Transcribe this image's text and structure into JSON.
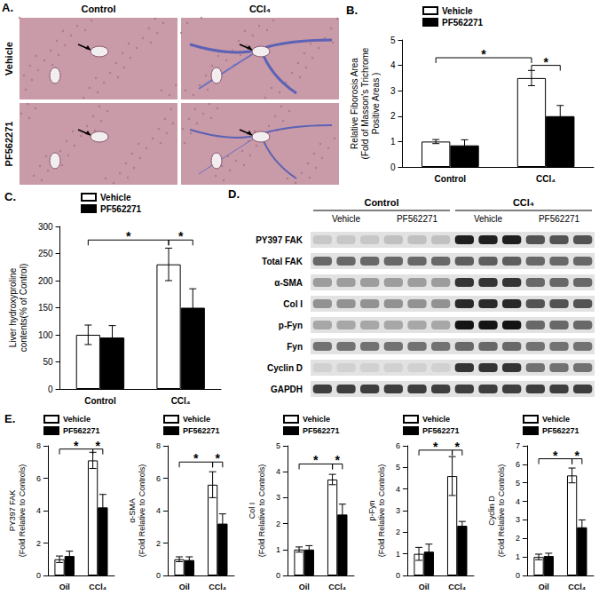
{
  "panel_a": {
    "title": "A.",
    "columns": [
      "Control",
      "CCl₄"
    ],
    "rows": [
      "Vehicle",
      "PF562271"
    ]
  },
  "panel_d": {
    "title": "D.",
    "groups": [
      {
        "label": "Control",
        "subgroups": [
          "Vehicle",
          "PF562271"
        ]
      },
      {
        "label": "CCl₄",
        "subgroups": [
          "Vehicle",
          "PF562271"
        ]
      }
    ],
    "lanes_per_subgroup": 3,
    "rows": [
      {
        "label": "PY397 FAK",
        "intensity": [
          0.15,
          0.18,
          0.95,
          0.7
        ]
      },
      {
        "label": "Total FAK",
        "intensity": [
          0.6,
          0.6,
          0.65,
          0.6
        ]
      },
      {
        "label": "α-SMA",
        "intensity": [
          0.35,
          0.35,
          0.85,
          0.6
        ]
      },
      {
        "label": "Col I",
        "intensity": [
          0.4,
          0.4,
          0.9,
          0.7
        ]
      },
      {
        "label": "p-Fyn",
        "intensity": [
          0.3,
          0.3,
          1.0,
          0.6
        ]
      },
      {
        "label": "Fyn",
        "intensity": [
          0.55,
          0.55,
          0.6,
          0.55
        ]
      },
      {
        "label": "Cyclin D",
        "intensity": [
          0.1,
          0.1,
          0.85,
          0.55
        ]
      },
      {
        "label": "GAPDH",
        "intensity": [
          0.8,
          0.8,
          0.8,
          0.8
        ]
      }
    ]
  },
  "chart_data": [
    {
      "type": "bar",
      "title": "B.",
      "y_label": "Relative Fiborosis Area\n(Fold of Masson's Trichrome\nPositive Areas )",
      "categories": [
        "Control",
        "CCl₄"
      ],
      "series": [
        {
          "name": "Vehicle",
          "color": "#ffffff",
          "values": [
            1.0,
            3.5
          ],
          "errors": [
            0.08,
            0.3
          ]
        },
        {
          "name": "PF562271",
          "color": "#000000",
          "values": [
            0.85,
            2.0
          ],
          "errors": [
            0.22,
            0.42
          ]
        }
      ],
      "ylim": [
        0,
        5
      ],
      "yticks": [
        0,
        1,
        2,
        3,
        4,
        5
      ],
      "grid": false,
      "legend": "top",
      "significance": [
        {
          "from": {
            "category": 0,
            "series": 0
          },
          "to": {
            "category": 1,
            "series": 0
          },
          "y": 4.3,
          "label": "*"
        },
        {
          "from": {
            "category": 1,
            "series": 0
          },
          "to": {
            "category": 1,
            "series": 1
          },
          "y": 4.0,
          "label": "*"
        }
      ]
    },
    {
      "type": "bar",
      "title": "C.",
      "y_label": "Liver hydroxyproline\ncontents(% of Control)",
      "categories": [
        "Control",
        "CCl₄"
      ],
      "series": [
        {
          "name": "Vehicle",
          "color": "#ffffff",
          "values": [
            100,
            230
          ],
          "errors": [
            18,
            30
          ]
        },
        {
          "name": "PF562271",
          "color": "#000000",
          "values": [
            95,
            150
          ],
          "errors": [
            22,
            35
          ]
        }
      ],
      "ylim": [
        0,
        300
      ],
      "yticks": [
        0,
        50,
        100,
        150,
        200,
        250,
        300
      ],
      "grid": false,
      "legend": "top",
      "significance": [
        {
          "from": {
            "category": 0,
            "series": 0
          },
          "to": {
            "category": 1,
            "series": 0
          },
          "y": 275,
          "label": "*"
        },
        {
          "from": {
            "category": 1,
            "series": 0
          },
          "to": {
            "category": 1,
            "series": 1
          },
          "y": 275,
          "label": "*"
        }
      ]
    },
    {
      "type": "bar",
      "title": "E.",
      "y_label": "PY397 FAK\n(Fold Relative to Controls)",
      "categories": [
        "Oil",
        "CCl₄"
      ],
      "series": [
        {
          "name": "Vehicle",
          "color": "#ffffff",
          "values": [
            1.0,
            7.1
          ],
          "errors": [
            0.2,
            0.5
          ]
        },
        {
          "name": "PF562271",
          "color": "#000000",
          "values": [
            1.2,
            4.2
          ],
          "errors": [
            0.3,
            0.8
          ]
        }
      ],
      "ylim": [
        0,
        8
      ],
      "yticks": [
        0,
        2,
        4,
        6,
        8
      ],
      "grid": false,
      "legend": "top",
      "significance": [
        {
          "from": {
            "category": 0,
            "series": 0
          },
          "to": {
            "category": 1,
            "series": 0
          },
          "y": 7.8,
          "label": "*"
        },
        {
          "from": {
            "category": 1,
            "series": 0
          },
          "to": {
            "category": 1,
            "series": 1
          },
          "y": 7.8,
          "label": "*"
        }
      ]
    },
    {
      "type": "bar",
      "y_label": "α-SMA\n(Fold Relative to Controls)",
      "categories": [
        "Oil",
        "CCl₄"
      ],
      "series": [
        {
          "name": "Vehicle",
          "color": "#ffffff",
          "values": [
            1.0,
            5.6
          ],
          "errors": [
            0.15,
            0.8
          ]
        },
        {
          "name": "PF562271",
          "color": "#000000",
          "values": [
            0.95,
            3.2
          ],
          "errors": [
            0.2,
            0.6
          ]
        }
      ],
      "ylim": [
        0,
        8
      ],
      "yticks": [
        0,
        2,
        4,
        6,
        8
      ],
      "grid": false,
      "legend": "top",
      "significance": [
        {
          "from": {
            "category": 0,
            "series": 0
          },
          "to": {
            "category": 1,
            "series": 0
          },
          "y": 7.0,
          "label": "*"
        },
        {
          "from": {
            "category": 1,
            "series": 0
          },
          "to": {
            "category": 1,
            "series": 1
          },
          "y": 7.0,
          "label": "*"
        }
      ]
    },
    {
      "type": "bar",
      "y_label": "Col I\n(Fold Relative to Controls)",
      "categories": [
        "Oil",
        "CCl₄"
      ],
      "series": [
        {
          "name": "Vehicle",
          "color": "#ffffff",
          "values": [
            1.0,
            3.7
          ],
          "errors": [
            0.1,
            0.2
          ]
        },
        {
          "name": "PF562271",
          "color": "#000000",
          "values": [
            1.0,
            2.35
          ],
          "errors": [
            0.15,
            0.4
          ]
        }
      ],
      "ylim": [
        0,
        5
      ],
      "yticks": [
        0,
        1,
        2,
        3,
        4,
        5
      ],
      "grid": false,
      "legend": "top",
      "significance": [
        {
          "from": {
            "category": 0,
            "series": 0
          },
          "to": {
            "category": 1,
            "series": 0
          },
          "y": 4.3,
          "label": "*"
        },
        {
          "from": {
            "category": 1,
            "series": 0
          },
          "to": {
            "category": 1,
            "series": 1
          },
          "y": 4.3,
          "label": "*"
        }
      ]
    },
    {
      "type": "bar",
      "y_label": "p-Fyn\n(Fold Relative to Controls)",
      "categories": [
        "Oil",
        "CCl₄"
      ],
      "series": [
        {
          "name": "Vehicle",
          "color": "#ffffff",
          "values": [
            1.0,
            4.6
          ],
          "errors": [
            0.3,
            0.9
          ]
        },
        {
          "name": "PF562271",
          "color": "#000000",
          "values": [
            1.1,
            2.3
          ],
          "errors": [
            0.35,
            0.2
          ]
        }
      ],
      "ylim": [
        0,
        6
      ],
      "yticks": [
        0,
        1,
        2,
        3,
        4,
        5,
        6
      ],
      "grid": false,
      "legend": "top",
      "significance": [
        {
          "from": {
            "category": 0,
            "series": 0
          },
          "to": {
            "category": 1,
            "series": 0
          },
          "y": 5.8,
          "label": "*"
        },
        {
          "from": {
            "category": 1,
            "series": 0
          },
          "to": {
            "category": 1,
            "series": 1
          },
          "y": 5.8,
          "label": "*"
        }
      ]
    },
    {
      "type": "bar",
      "y_label": "Cyclin D\n(Fold Relative to Controls)",
      "categories": [
        "Oil",
        "CCl₄"
      ],
      "series": [
        {
          "name": "Vehicle",
          "color": "#ffffff",
          "values": [
            1.0,
            5.4
          ],
          "errors": [
            0.15,
            0.4
          ]
        },
        {
          "name": "PF562271",
          "color": "#000000",
          "values": [
            1.05,
            2.6
          ],
          "errors": [
            0.15,
            0.4
          ]
        }
      ],
      "ylim": [
        0,
        7
      ],
      "yticks": [
        0,
        1,
        2,
        3,
        4,
        5,
        6,
        7
      ],
      "grid": false,
      "legend": "top",
      "significance": [
        {
          "from": {
            "category": 0,
            "series": 0
          },
          "to": {
            "category": 1,
            "series": 0
          },
          "y": 6.3,
          "label": "*"
        },
        {
          "from": {
            "category": 1,
            "series": 0
          },
          "to": {
            "category": 1,
            "series": 1
          },
          "y": 6.3,
          "label": "*"
        }
      ]
    }
  ]
}
